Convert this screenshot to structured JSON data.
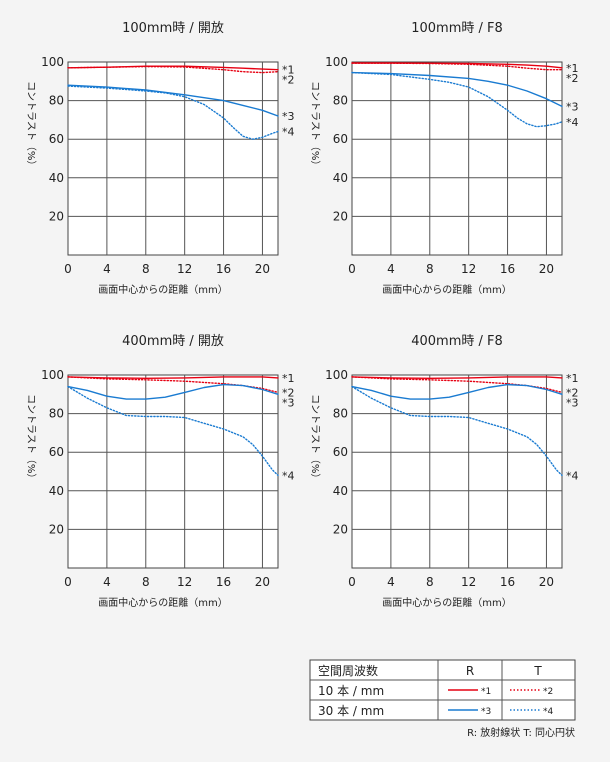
{
  "chart_data": [
    {
      "type": "line",
      "title": "100mm時 / 開放",
      "xlabel": "画面中心からの距離（mm）",
      "ylabel": "コントラスト（%）",
      "xlim": [
        0,
        21.6
      ],
      "ylim": [
        0,
        100
      ],
      "xticks": [
        0,
        4,
        8,
        12,
        16,
        20
      ],
      "yticks": [
        20,
        40,
        60,
        80,
        100
      ],
      "series": [
        {
          "name": "*1",
          "color": "#e60012",
          "dash": "solid",
          "x": [
            0,
            4,
            8,
            12,
            16,
            18,
            20,
            21.6
          ],
          "y": [
            97,
            97.3,
            97.8,
            97.8,
            97.2,
            96.8,
            96.3,
            96
          ]
        },
        {
          "name": "*2",
          "color": "#e60012",
          "dash": "dotted",
          "x": [
            0,
            4,
            8,
            12,
            16,
            18,
            20,
            21.6
          ],
          "y": [
            97,
            97.3,
            97.6,
            97.4,
            96,
            95,
            94.5,
            95
          ]
        },
        {
          "name": "*3",
          "color": "#1a7bd1",
          "dash": "solid",
          "x": [
            0,
            4,
            8,
            12,
            16,
            18,
            20,
            21.6
          ],
          "y": [
            88,
            87,
            85.5,
            83,
            80,
            77.5,
            75,
            72
          ]
        },
        {
          "name": "*4",
          "color": "#1a7bd1",
          "dash": "dotted",
          "x": [
            0,
            4,
            8,
            10,
            12,
            14,
            16,
            17,
            18,
            19,
            20,
            21,
            21.6
          ],
          "y": [
            87.5,
            86.5,
            85,
            84,
            82,
            78,
            71,
            66,
            61.5,
            60,
            61,
            63,
            64
          ]
        }
      ]
    },
    {
      "type": "line",
      "title": "100mm時 / F8",
      "xlabel": "画面中心からの距離（mm）",
      "ylabel": "コントラスト（%）",
      "xlim": [
        0,
        21.6
      ],
      "ylim": [
        0,
        100
      ],
      "xticks": [
        0,
        4,
        8,
        12,
        16,
        20
      ],
      "yticks": [
        20,
        40,
        60,
        80,
        100
      ],
      "series": [
        {
          "name": "*1",
          "color": "#e60012",
          "dash": "solid",
          "x": [
            0,
            4,
            8,
            12,
            16,
            18,
            20,
            21.6
          ],
          "y": [
            99.5,
            99.5,
            99.4,
            99.2,
            98.8,
            98.4,
            97.8,
            97
          ]
        },
        {
          "name": "*2",
          "color": "#e60012",
          "dash": "dotted",
          "x": [
            0,
            4,
            8,
            12,
            16,
            18,
            20,
            21.6
          ],
          "y": [
            99.4,
            99.4,
            99.2,
            98.8,
            97.8,
            96.8,
            96,
            96
          ]
        },
        {
          "name": "*3",
          "color": "#1a7bd1",
          "dash": "solid",
          "x": [
            0,
            4,
            8,
            12,
            14,
            16,
            18,
            20,
            21.6
          ],
          "y": [
            94.5,
            94,
            93,
            91.5,
            90,
            88,
            85,
            81,
            77
          ]
        },
        {
          "name": "*4",
          "color": "#1a7bd1",
          "dash": "dotted",
          "x": [
            0,
            4,
            8,
            10,
            12,
            14,
            16,
            17,
            18,
            19,
            20,
            21,
            21.6
          ],
          "y": [
            94.5,
            93.5,
            91,
            89.5,
            87,
            82,
            75,
            71,
            68,
            66.5,
            67,
            68,
            69
          ]
        }
      ]
    },
    {
      "type": "line",
      "title": "400mm時 / 開放",
      "xlabel": "画面中心からの距離（mm）",
      "ylabel": "コントラスト（%）",
      "xlim": [
        0,
        21.6
      ],
      "ylim": [
        0,
        100
      ],
      "xticks": [
        0,
        4,
        8,
        12,
        16,
        20
      ],
      "yticks": [
        20,
        40,
        60,
        80,
        100
      ],
      "series": [
        {
          "name": "*1",
          "color": "#e60012",
          "dash": "solid",
          "x": [
            0,
            4,
            8,
            12,
            16,
            20,
            21.6
          ],
          "y": [
            99,
            98.5,
            98.3,
            98.5,
            99,
            99,
            98.5
          ]
        },
        {
          "name": "*2",
          "color": "#e60012",
          "dash": "dotted",
          "x": [
            0,
            4,
            8,
            12,
            16,
            18,
            20,
            21.6
          ],
          "y": [
            99,
            98,
            97.5,
            96.8,
            95.5,
            94.5,
            93,
            91
          ]
        },
        {
          "name": "*3",
          "color": "#1a7bd1",
          "dash": "solid",
          "x": [
            0,
            2,
            4,
            6,
            8,
            10,
            12,
            14,
            16,
            18,
            20,
            21.6
          ],
          "y": [
            94,
            92,
            89,
            87.5,
            87.5,
            88.5,
            91,
            93.5,
            95,
            94.5,
            92.5,
            90
          ]
        },
        {
          "name": "*4",
          "color": "#1a7bd1",
          "dash": "dotted",
          "x": [
            0,
            2,
            4,
            6,
            8,
            10,
            12,
            14,
            16,
            18,
            19,
            20,
            21,
            21.6
          ],
          "y": [
            94,
            88,
            83,
            79,
            78.5,
            78.5,
            78,
            75,
            72,
            68,
            64,
            58,
            51,
            48
          ]
        }
      ]
    },
    {
      "type": "line",
      "title": "400mm時 / F8",
      "xlabel": "画面中心からの距離（mm）",
      "ylabel": "コントラスト（%）",
      "xlim": [
        0,
        21.6
      ],
      "ylim": [
        0,
        100
      ],
      "xticks": [
        0,
        4,
        8,
        12,
        16,
        20
      ],
      "yticks": [
        20,
        40,
        60,
        80,
        100
      ],
      "series": [
        {
          "name": "*1",
          "color": "#e60012",
          "dash": "solid",
          "x": [
            0,
            4,
            8,
            12,
            16,
            20,
            21.6
          ],
          "y": [
            99,
            98.5,
            98.3,
            98.5,
            99,
            99,
            98.5
          ]
        },
        {
          "name": "*2",
          "color": "#e60012",
          "dash": "dotted",
          "x": [
            0,
            4,
            8,
            12,
            16,
            18,
            20,
            21.6
          ],
          "y": [
            99,
            98,
            97.5,
            96.8,
            95.5,
            94.5,
            93,
            91
          ]
        },
        {
          "name": "*3",
          "color": "#1a7bd1",
          "dash": "solid",
          "x": [
            0,
            2,
            4,
            6,
            8,
            10,
            12,
            14,
            16,
            18,
            20,
            21.6
          ],
          "y": [
            94,
            92,
            89,
            87.5,
            87.5,
            88.5,
            91,
            93.5,
            95,
            94.5,
            92.5,
            90
          ]
        },
        {
          "name": "*4",
          "color": "#1a7bd1",
          "dash": "dotted",
          "x": [
            0,
            2,
            4,
            6,
            8,
            10,
            12,
            14,
            16,
            18,
            19,
            20,
            21,
            21.6
          ],
          "y": [
            94,
            88,
            83,
            79,
            78.5,
            78.5,
            78,
            75,
            72,
            68,
            64,
            58,
            51,
            48
          ]
        }
      ]
    }
  ],
  "legend": {
    "header": "空間周波数",
    "col_r": "R",
    "col_t": "T",
    "rows": [
      {
        "label": "10 本 / mm",
        "r": "*1",
        "t": "*2",
        "r_color": "#e60012",
        "t_color": "#e60012"
      },
      {
        "label": "30 本 / mm",
        "r": "*3",
        "t": "*4",
        "r_color": "#1a7bd1",
        "t_color": "#1a7bd1"
      }
    ],
    "footnote": "R: 放射線状  T: 同心円状"
  }
}
